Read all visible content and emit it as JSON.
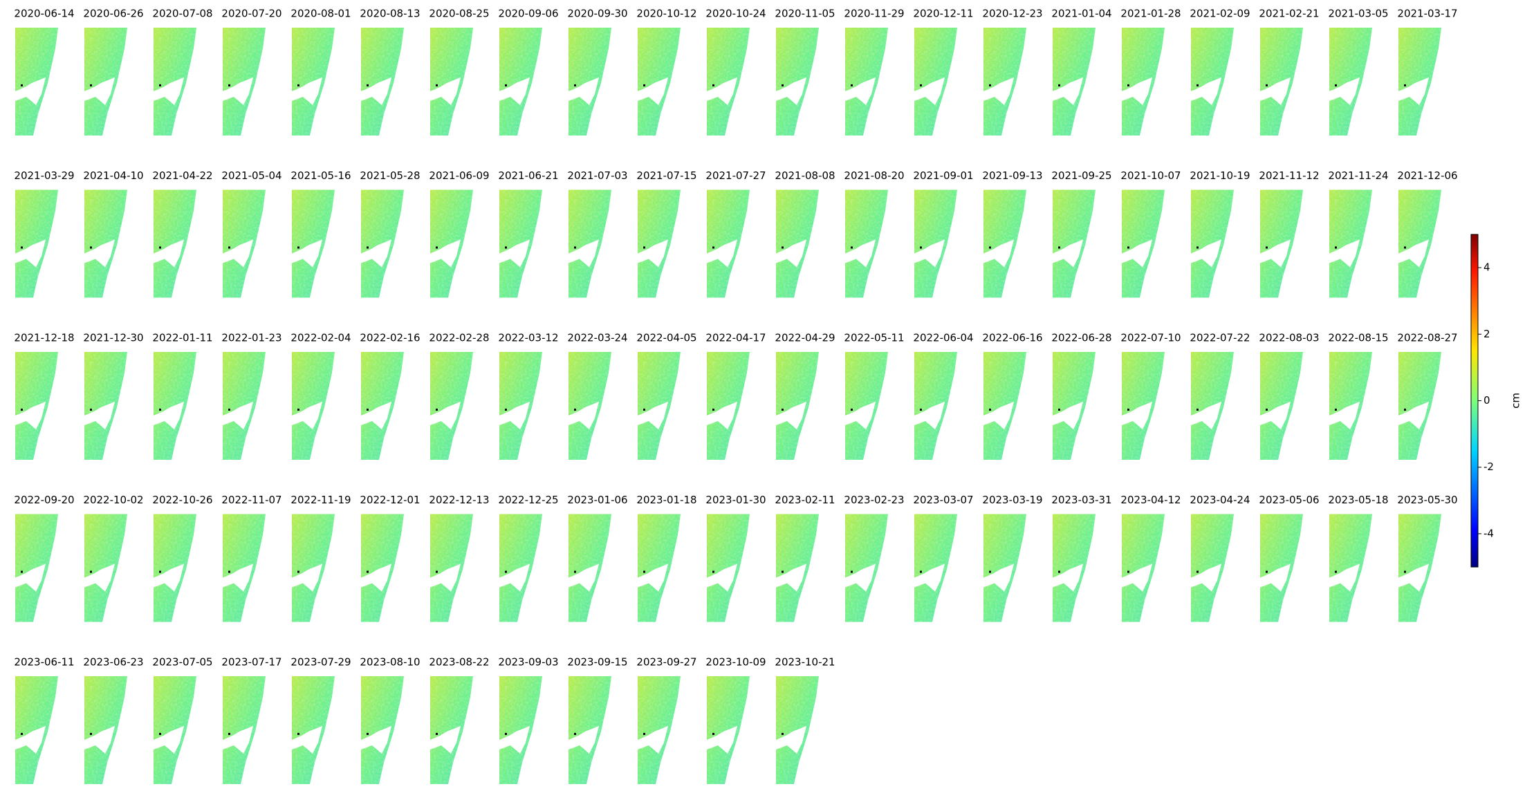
{
  "panels": [
    "2020-06-14",
    "2020-06-26",
    "2020-07-08",
    "2020-07-20",
    "2020-08-01",
    "2020-08-13",
    "2020-08-25",
    "2020-09-06",
    "2020-09-30",
    "2020-10-12",
    "2020-10-24",
    "2020-11-05",
    "2020-11-29",
    "2020-12-11",
    "2020-12-23",
    "2021-01-04",
    "2021-01-28",
    "2021-02-09",
    "2021-02-21",
    "2021-03-05",
    "2021-03-17",
    "2021-03-29",
    "2021-04-10",
    "2021-04-22",
    "2021-05-04",
    "2021-05-16",
    "2021-05-28",
    "2021-06-09",
    "2021-06-21",
    "2021-07-03",
    "2021-07-15",
    "2021-07-27",
    "2021-08-08",
    "2021-08-20",
    "2021-09-01",
    "2021-09-13",
    "2021-09-25",
    "2021-10-07",
    "2021-10-19",
    "2021-11-12",
    "2021-11-24",
    "2021-12-06",
    "2021-12-18",
    "2021-12-30",
    "2022-01-11",
    "2022-01-23",
    "2022-02-04",
    "2022-02-16",
    "2022-02-28",
    "2022-03-12",
    "2022-03-24",
    "2022-04-05",
    "2022-04-17",
    "2022-04-29",
    "2022-05-11",
    "2022-06-04",
    "2022-06-16",
    "2022-06-28",
    "2022-07-10",
    "2022-07-22",
    "2022-08-03",
    "2022-08-15",
    "2022-08-27",
    "2022-09-20",
    "2022-10-02",
    "2022-10-26",
    "2022-11-07",
    "2022-11-19",
    "2022-12-01",
    "2022-12-13",
    "2022-12-25",
    "2023-01-06",
    "2023-01-18",
    "2023-01-30",
    "2023-02-11",
    "2023-02-23",
    "2023-03-07",
    "2023-03-19",
    "2023-03-31",
    "2023-04-12",
    "2023-04-24",
    "2023-05-06",
    "2023-05-18",
    "2023-05-30",
    "2023-06-11",
    "2023-06-23",
    "2023-07-05",
    "2023-07-17",
    "2023-07-29",
    "2023-08-10",
    "2023-08-22",
    "2023-09-03",
    "2023-09-15",
    "2023-09-27",
    "2023-10-09",
    "2023-10-21"
  ],
  "colorbar": {
    "label": "cm",
    "range": [
      -5,
      5
    ],
    "ticks": [
      -4,
      -2,
      0,
      2,
      4
    ]
  }
}
